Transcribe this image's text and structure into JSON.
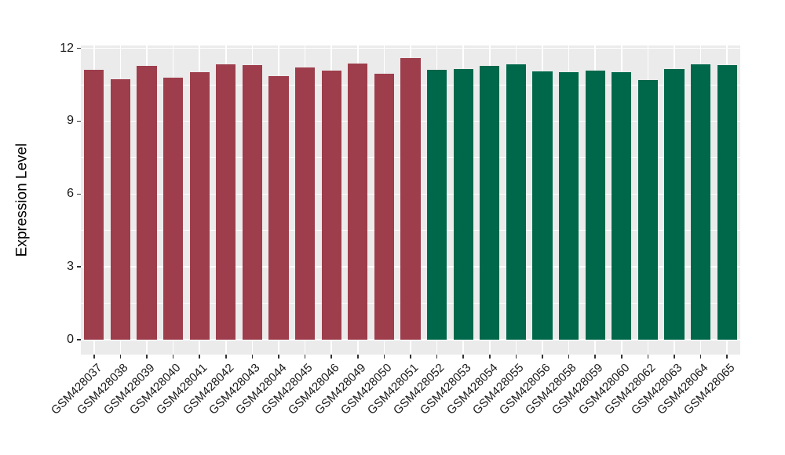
{
  "chart_data": {
    "type": "bar",
    "title": "",
    "xlabel": "",
    "ylabel": "Expression Level",
    "ylim": [
      0,
      12
    ],
    "yticks": [
      0,
      3,
      6,
      9,
      12
    ],
    "minor_gridlines": [
      1.5,
      4.5,
      7.5,
      10.5
    ],
    "grid": true,
    "legend": "none",
    "panel_background": "#EBEBEB",
    "grid_color": "#FFFFFF",
    "group_colors": {
      "left_group": "#9E3E4C",
      "right_group": "#00684A"
    },
    "bars": [
      {
        "label": "GSM428037",
        "value": 11.11,
        "color": "#9E3E4C"
      },
      {
        "label": "GSM428038",
        "value": 10.74,
        "color": "#9E3E4C"
      },
      {
        "label": "GSM428039",
        "value": 11.29,
        "color": "#9E3E4C"
      },
      {
        "label": "GSM428040",
        "value": 10.78,
        "color": "#9E3E4C"
      },
      {
        "label": "GSM428041",
        "value": 11.03,
        "color": "#9E3E4C"
      },
      {
        "label": "GSM428042",
        "value": 11.35,
        "color": "#9E3E4C"
      },
      {
        "label": "GSM428043",
        "value": 11.3,
        "color": "#9E3E4C"
      },
      {
        "label": "GSM428044",
        "value": 10.86,
        "color": "#9E3E4C"
      },
      {
        "label": "GSM428045",
        "value": 11.22,
        "color": "#9E3E4C"
      },
      {
        "label": "GSM428046",
        "value": 11.08,
        "color": "#9E3E4C"
      },
      {
        "label": "GSM428049",
        "value": 11.37,
        "color": "#9E3E4C"
      },
      {
        "label": "GSM428050",
        "value": 10.94,
        "color": "#9E3E4C"
      },
      {
        "label": "GSM428051",
        "value": 11.59,
        "color": "#9E3E4C"
      },
      {
        "label": "GSM428052",
        "value": 11.11,
        "color": "#00684A"
      },
      {
        "label": "GSM428053",
        "value": 11.16,
        "color": "#00684A"
      },
      {
        "label": "GSM428054",
        "value": 11.27,
        "color": "#00684A"
      },
      {
        "label": "GSM428055",
        "value": 11.33,
        "color": "#00684A"
      },
      {
        "label": "GSM428056",
        "value": 11.05,
        "color": "#00684A"
      },
      {
        "label": "GSM428058",
        "value": 11.02,
        "color": "#00684A"
      },
      {
        "label": "GSM428059",
        "value": 11.09,
        "color": "#00684A"
      },
      {
        "label": "GSM428060",
        "value": 11.01,
        "color": "#00684A"
      },
      {
        "label": "GSM428062",
        "value": 10.7,
        "color": "#00684A"
      },
      {
        "label": "GSM428063",
        "value": 11.14,
        "color": "#00684A"
      },
      {
        "label": "GSM428064",
        "value": 11.36,
        "color": "#00684A"
      },
      {
        "label": "GSM428065",
        "value": 11.3,
        "color": "#00684A"
      }
    ]
  }
}
